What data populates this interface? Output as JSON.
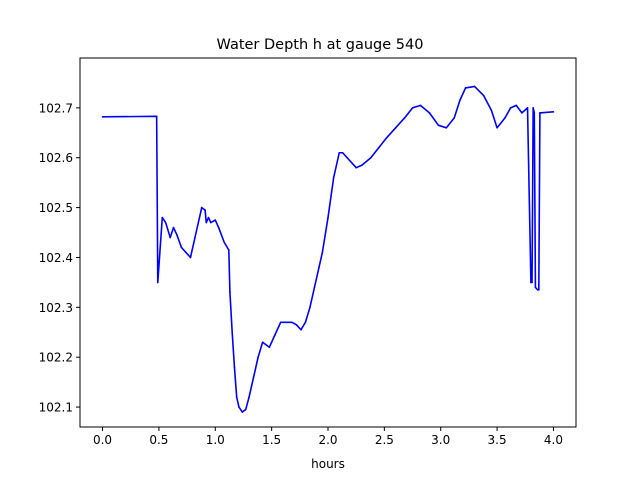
{
  "chart_data": {
    "type": "line",
    "title": "Water Depth h at gauge 540",
    "xlabel": "hours",
    "ylabel": "",
    "xlim": [
      -0.2,
      4.2
    ],
    "ylim": [
      102.06,
      102.8
    ],
    "x_ticks": [
      0.0,
      0.5,
      1.0,
      1.5,
      2.0,
      2.5,
      3.0,
      3.5,
      4.0
    ],
    "x_tick_labels": [
      "0.0",
      "0.5",
      "1.0",
      "1.5",
      "2.0",
      "2.5",
      "3.0",
      "3.5",
      "4.0"
    ],
    "y_ticks": [
      102.1,
      102.2,
      102.3,
      102.4,
      102.5,
      102.6,
      102.7
    ],
    "y_tick_labels": [
      "102.1",
      "102.2",
      "102.3",
      "102.4",
      "102.5",
      "102.6",
      "102.7"
    ],
    "grid": false,
    "legend": "none",
    "line_color": "#0000ff",
    "series": [
      {
        "x": [
          0.0,
          0.48,
          0.49,
          0.49,
          0.53,
          0.56,
          0.6,
          0.63,
          0.66,
          0.7,
          0.78,
          0.82,
          0.88,
          0.91,
          0.92,
          0.94,
          0.96,
          1.0,
          1.03,
          1.08,
          1.12,
          1.13,
          1.15,
          1.17,
          1.19,
          1.21,
          1.24,
          1.27,
          1.3,
          1.34,
          1.38,
          1.42,
          1.48,
          1.5,
          1.53,
          1.56,
          1.58,
          1.62,
          1.68,
          1.72,
          1.76,
          1.8,
          1.84,
          1.88,
          1.92,
          1.95,
          2.0,
          2.05,
          2.1,
          2.13,
          2.17,
          2.25,
          2.3,
          2.38,
          2.45,
          2.52,
          2.6,
          2.68,
          2.75,
          2.82,
          2.9,
          2.98,
          3.05,
          3.12,
          3.17,
          3.22,
          3.3,
          3.38,
          3.45,
          3.5,
          3.57,
          3.62,
          3.67,
          3.72,
          3.77,
          3.8,
          3.81,
          3.82,
          3.83,
          3.84,
          3.86,
          3.87,
          3.88,
          3.89,
          4.0
        ],
        "y": [
          102.682,
          102.683,
          102.35,
          102.35,
          102.48,
          102.47,
          102.44,
          102.46,
          102.445,
          102.42,
          102.4,
          102.44,
          102.5,
          102.495,
          102.47,
          102.48,
          102.47,
          102.475,
          102.46,
          102.43,
          102.415,
          102.33,
          102.25,
          102.18,
          102.12,
          102.1,
          102.09,
          102.095,
          102.12,
          102.16,
          102.2,
          102.23,
          102.22,
          102.23,
          102.245,
          102.26,
          102.27,
          102.27,
          102.27,
          102.265,
          102.255,
          102.27,
          102.3,
          102.34,
          102.38,
          102.41,
          102.48,
          102.56,
          102.61,
          102.61,
          102.6,
          102.58,
          102.585,
          102.6,
          102.62,
          102.64,
          102.66,
          102.68,
          102.7,
          102.705,
          102.69,
          102.665,
          102.66,
          102.68,
          102.715,
          102.74,
          102.743,
          102.725,
          102.695,
          102.66,
          102.68,
          102.7,
          102.705,
          102.69,
          102.7,
          102.35,
          102.35,
          102.7,
          102.69,
          102.34,
          102.335,
          102.335,
          102.69,
          102.69,
          102.692
        ]
      }
    ]
  }
}
